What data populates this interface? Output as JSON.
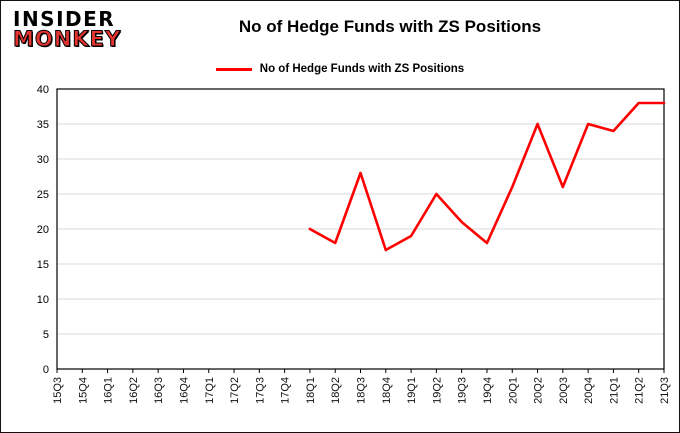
{
  "logo": {
    "line1": "INSIDER",
    "line2": "MONKEY",
    "monkey_color": "#e3342f"
  },
  "title": "No of Hedge Funds with ZS Positions",
  "legend": {
    "label": "No of Hedge Funds with ZS Positions",
    "color": "#fe0000"
  },
  "chart_data": {
    "type": "line",
    "title": "No of Hedge Funds with ZS Positions",
    "xlabel": "",
    "ylabel": "",
    "ylim": [
      0,
      40
    ],
    "ytick_step": 5,
    "grid": true,
    "gridline_color": "#d9d9d9",
    "legend_position": "top-center",
    "categories": [
      "15Q3",
      "15Q4",
      "16Q1",
      "16Q2",
      "16Q3",
      "16Q4",
      "17Q1",
      "17Q2",
      "17Q3",
      "17Q4",
      "18Q1",
      "18Q2",
      "18Q3",
      "18Q4",
      "19Q1",
      "19Q2",
      "19Q3",
      "19Q4",
      "20Q1",
      "20Q2",
      "20Q3",
      "20Q4",
      "21Q1",
      "21Q2",
      "21Q3"
    ],
    "series": [
      {
        "name": "No of Hedge Funds with ZS Positions",
        "color": "#fe0000",
        "values": [
          null,
          null,
          null,
          null,
          null,
          null,
          null,
          null,
          null,
          null,
          20,
          18,
          28,
          17,
          19,
          25,
          21,
          18,
          26,
          35,
          26,
          35,
          34,
          38,
          38
        ]
      }
    ]
  }
}
